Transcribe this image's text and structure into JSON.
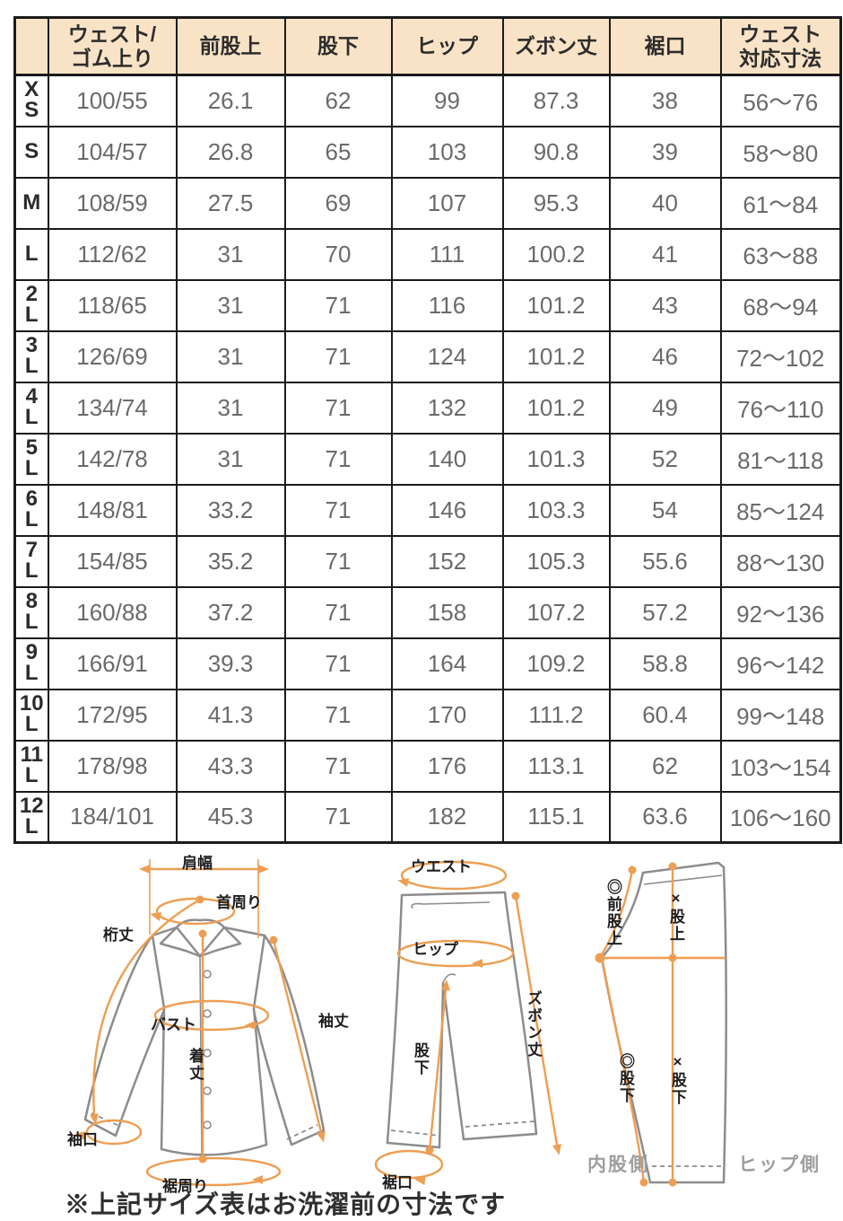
{
  "colors": {
    "header_bg": "#F8E3C6",
    "annotation_orange": "#ED9E52",
    "table_border": "#1b1b1b",
    "value_text": "#6a6a6a",
    "garment_outline": "#8C8C8C",
    "side_label_gray": "#9e9e9e"
  },
  "size_table": {
    "columns": [
      "ウェスト/\nゴム上り",
      "前股上",
      "股下",
      "ヒップ",
      "ズボン丈",
      "裾口",
      "ウェスト\n対応寸法"
    ],
    "rows": [
      {
        "size": "XS",
        "values": [
          "100/55",
          "26.1",
          "62",
          "99",
          "87.3",
          "38",
          "56〜76"
        ]
      },
      {
        "size": "S",
        "values": [
          "104/57",
          "26.8",
          "65",
          "103",
          "90.8",
          "39",
          "58〜80"
        ]
      },
      {
        "size": "M",
        "values": [
          "108/59",
          "27.5",
          "69",
          "107",
          "95.3",
          "40",
          "61〜84"
        ]
      },
      {
        "size": "L",
        "values": [
          "112/62",
          "31",
          "70",
          "111",
          "100.2",
          "41",
          "63〜88"
        ]
      },
      {
        "size": "2L",
        "values": [
          "118/65",
          "31",
          "71",
          "116",
          "101.2",
          "43",
          "68〜94"
        ]
      },
      {
        "size": "3L",
        "values": [
          "126/69",
          "31",
          "71",
          "124",
          "101.2",
          "46",
          "72〜102"
        ]
      },
      {
        "size": "4L",
        "values": [
          "134/74",
          "31",
          "71",
          "132",
          "101.2",
          "49",
          "76〜110"
        ]
      },
      {
        "size": "5L",
        "values": [
          "142/78",
          "31",
          "71",
          "140",
          "101.3",
          "52",
          "81〜118"
        ]
      },
      {
        "size": "6L",
        "values": [
          "148/81",
          "33.2",
          "71",
          "146",
          "103.3",
          "54",
          "85〜124"
        ]
      },
      {
        "size": "7L",
        "values": [
          "154/85",
          "35.2",
          "71",
          "152",
          "105.3",
          "55.6",
          "88〜130"
        ]
      },
      {
        "size": "8L",
        "values": [
          "160/88",
          "37.2",
          "71",
          "158",
          "107.2",
          "57.2",
          "92〜136"
        ]
      },
      {
        "size": "9L",
        "values": [
          "166/91",
          "39.3",
          "71",
          "164",
          "109.2",
          "58.8",
          "96〜142"
        ]
      },
      {
        "size": "10L",
        "values": [
          "172/95",
          "41.3",
          "71",
          "170",
          "111.2",
          "60.4",
          "99〜148"
        ]
      },
      {
        "size": "11L",
        "values": [
          "178/98",
          "43.3",
          "71",
          "176",
          "113.1",
          "62",
          "103〜154"
        ]
      },
      {
        "size": "12L",
        "values": [
          "184/101",
          "45.3",
          "71",
          "182",
          "115.1",
          "63.6",
          "106〜160"
        ]
      }
    ]
  },
  "diagrams": {
    "shirt": {
      "labels": {
        "shoulder_width": "肩幅",
        "neck": "首周り",
        "yuki": "桁丈",
        "bust": "バスト",
        "sleeve_length": "袖丈",
        "body_length": "着丈",
        "cuff": "袖口",
        "hem_around": "裾周り"
      }
    },
    "pants_front": {
      "labels": {
        "waist": "ウエスト",
        "hip": "ヒップ",
        "pants_length": "ズボン丈",
        "inseam": "股下",
        "hem": "裾口"
      }
    },
    "pants_side": {
      "labels": {
        "front_rise": "◎前股上",
        "rise": "×股上",
        "inseam_a": "◎股下",
        "inseam_b": "×股下",
        "inner_side": "内股側",
        "hip_side": "ヒップ側"
      }
    }
  },
  "note": "※上記サイズ表はお洗濯前の寸法です"
}
